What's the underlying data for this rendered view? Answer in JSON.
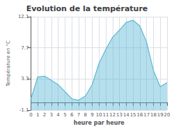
{
  "chart_data": {
    "type": "area",
    "title": "Evolution de la température",
    "xlabel": "heure par heure",
    "ylabel": "Température en °C",
    "x": [
      0,
      1,
      2,
      3,
      4,
      5,
      6,
      7,
      8,
      9,
      10,
      11,
      12,
      13,
      14,
      15,
      16,
      17,
      18,
      19,
      20
    ],
    "values": [
      0.5,
      3.6,
      3.7,
      3.1,
      2.5,
      1.5,
      0.5,
      0.3,
      0.9,
      2.5,
      5.5,
      7.5,
      9.2,
      10.2,
      11.3,
      11.6,
      10.8,
      8.5,
      4.5,
      2.2,
      2.8
    ],
    "color": "#5bb8d4",
    "xlim": [
      0,
      20
    ],
    "xticks": [
      0,
      1,
      2,
      3,
      4,
      5,
      6,
      7,
      8,
      9,
      10,
      11,
      12,
      13,
      14,
      15,
      16,
      17,
      18,
      19,
      20
    ],
    "ylim": [
      -1.1,
      12.1
    ],
    "yticks": [
      -1.1,
      3.3,
      7.7,
      12.1
    ],
    "grid": true
  }
}
